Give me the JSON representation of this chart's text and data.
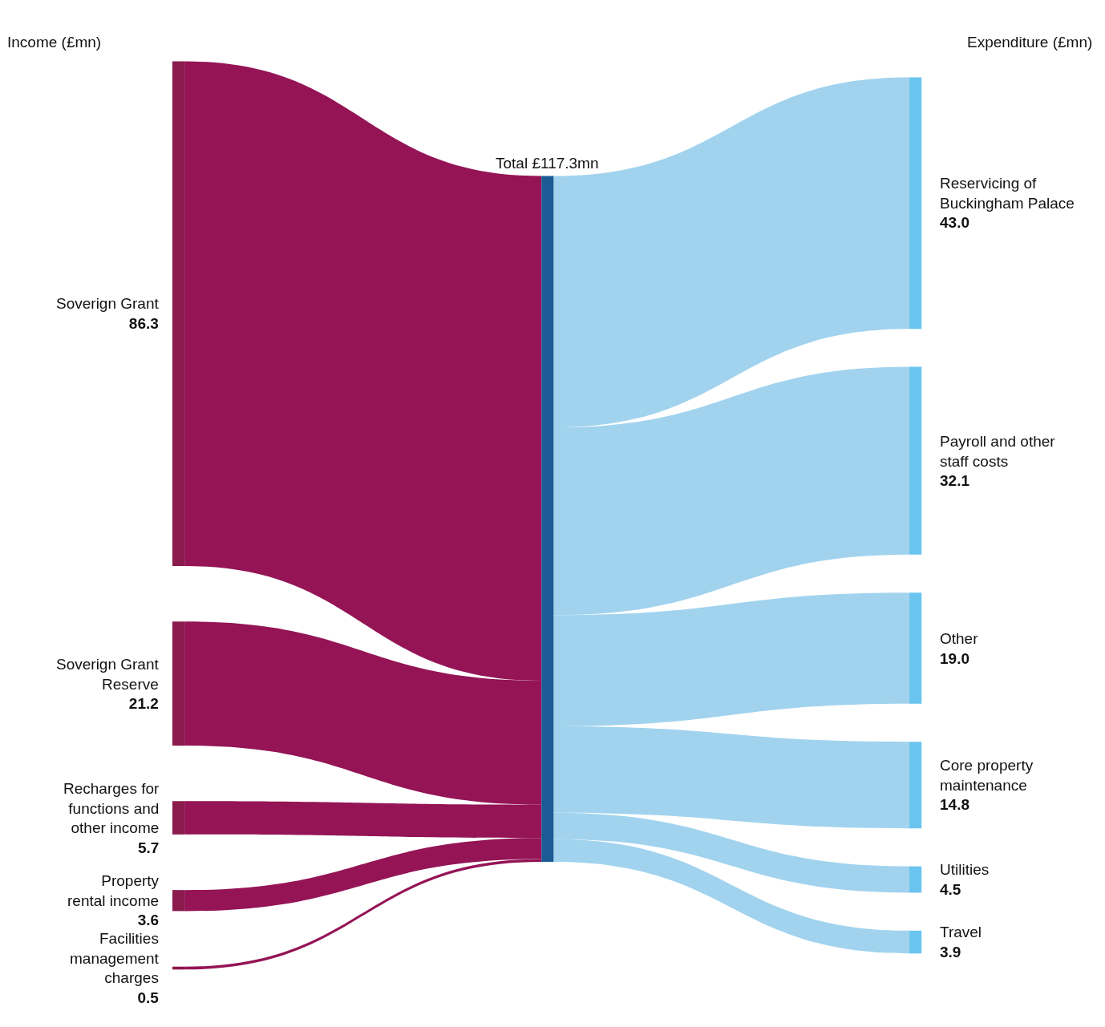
{
  "chart_data": {
    "type": "other",
    "categories": [
      "Soverign Grant",
      "Soverign Grant Reserve",
      "Recharges for functions and other income",
      "Property rental income",
      "Facilities management charges",
      "Reservicing of Buckingham Palace",
      "Payroll and other staff costs",
      "Other",
      "Core property maintenance",
      "Utilities",
      "Travel"
    ],
    "values": [
      86.3,
      21.2,
      5.7,
      3.6,
      0.5,
      43.0,
      32.1,
      19.0,
      14.8,
      4.5,
      3.9
    ],
    "value_labels": [
      "86.3",
      "21.2",
      "5.7",
      "3.6",
      "0.5",
      "43.0",
      "32.1",
      "19.0",
      "14.8",
      "4.5",
      "3.9"
    ],
    "colors": [
      "#941456",
      "#941456",
      "#941456",
      "#941456",
      "#941456",
      "#a1d3ee",
      "#a1d3ee",
      "#a1d3ee",
      "#a1d3ee",
      "#a1d3ee",
      "#a1d3ee"
    ],
    "annotations": [
      "Income (£mn)",
      "Expenditure (£mn)",
      "Total £117.3mn"
    ]
  }
}
